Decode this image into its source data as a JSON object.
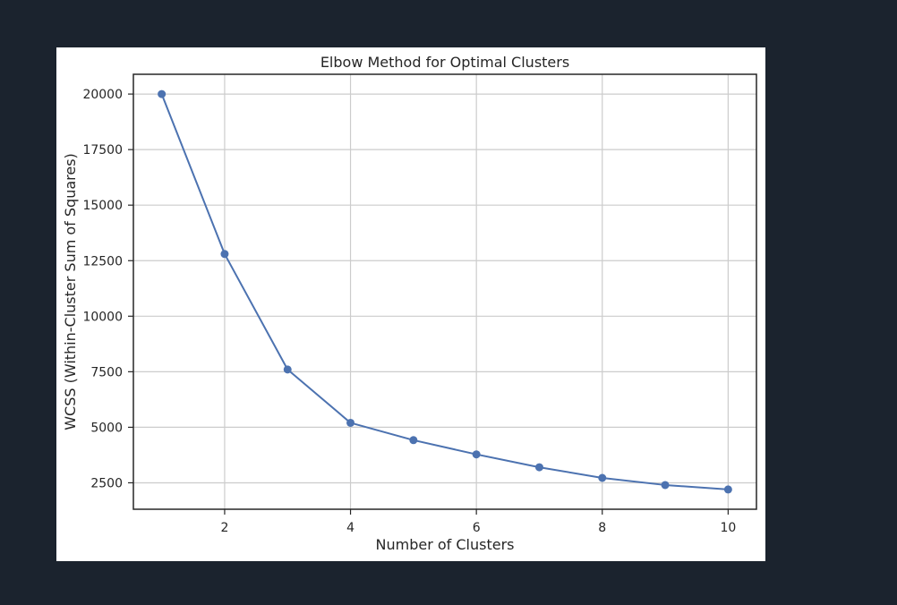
{
  "chart_data": {
    "type": "line",
    "title": "Elbow Method for Optimal Clusters",
    "xlabel": "Number of Clusters",
    "ylabel": "WCSS (Within-Cluster Sum of Squares)",
    "x": [
      1,
      2,
      3,
      4,
      5,
      6,
      7,
      8,
      9,
      10
    ],
    "series": [
      {
        "values": [
          20000,
          12800,
          7600,
          5200,
          4420,
          3780,
          3200,
          2720,
          2400,
          2200
        ]
      }
    ],
    "xticks": [
      2,
      4,
      6,
      8,
      10
    ],
    "yticks": [
      2500,
      5000,
      7500,
      10000,
      12500,
      15000,
      17500,
      20000
    ],
    "xlim": [
      0.55,
      10.45
    ],
    "ylim": [
      1310,
      20890
    ],
    "grid": true,
    "marker": "circle",
    "line_color": "#4c72b0"
  }
}
